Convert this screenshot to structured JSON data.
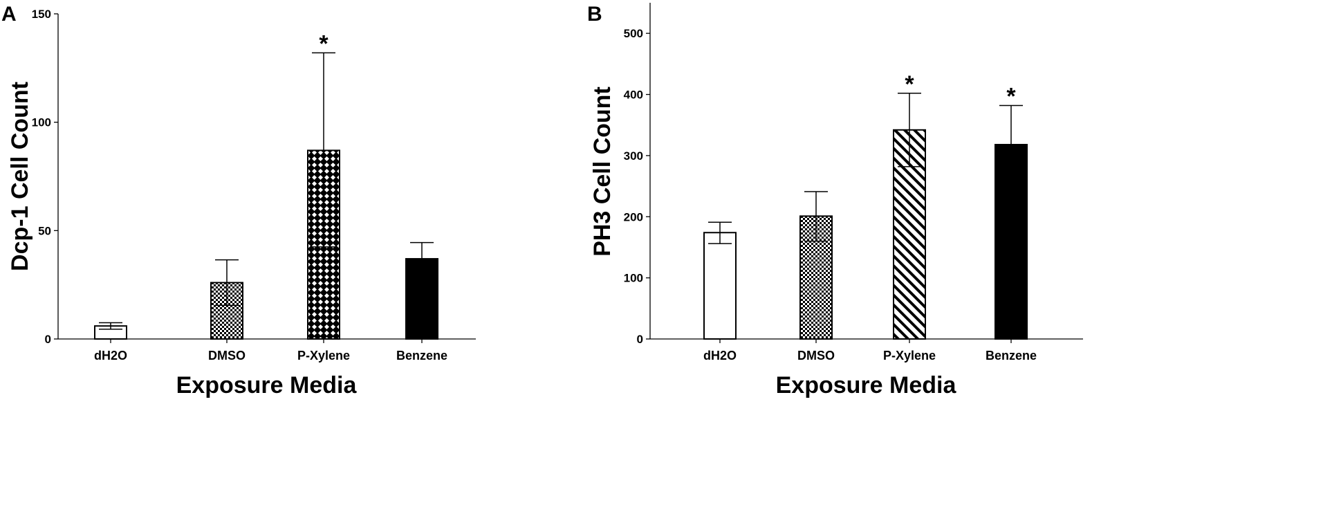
{
  "chart_data": [
    {
      "panel": "A",
      "type": "bar",
      "categories": [
        "dH2O",
        "DMSO",
        "P-Xylene",
        "Benzene"
      ],
      "values": [
        6,
        26,
        87,
        37
      ],
      "error_upper": [
        7.5,
        36.5,
        132,
        44.5
      ],
      "error_lower": [
        4.5,
        15.5,
        42.5,
        29.5
      ],
      "significance": [
        "",
        "",
        "*",
        ""
      ],
      "patterns": [
        "white",
        "checker-fine",
        "diamond-lattice",
        "black"
      ],
      "xlabel": "Exposure Media",
      "ylabel": "Dcp-1 Cell Count",
      "ylim": [
        0,
        150
      ],
      "yticks": [
        0,
        50,
        100,
        150
      ],
      "grid": false
    },
    {
      "panel": "B",
      "type": "bar",
      "categories": [
        "dH2O",
        "DMSO",
        "P-Xylene",
        "Benzene"
      ],
      "values": [
        174,
        201,
        342,
        318
      ],
      "error_upper": [
        191,
        241,
        402,
        382
      ],
      "error_lower": [
        156,
        160,
        282,
        254
      ],
      "significance": [
        "",
        "",
        "*",
        "*"
      ],
      "patterns": [
        "white",
        "checker-fine",
        "diagonal-stripes",
        "black"
      ],
      "xlabel": "Exposure Media",
      "ylabel": "PH3 Cell Count",
      "ylim": [
        0,
        550
      ],
      "yticks": [
        0,
        100,
        200,
        300,
        400,
        500
      ],
      "grid": false
    }
  ],
  "colors": {
    "bar_stroke": "#000000",
    "bar_fill_white": "#ffffff",
    "bar_fill_black": "#000000"
  }
}
